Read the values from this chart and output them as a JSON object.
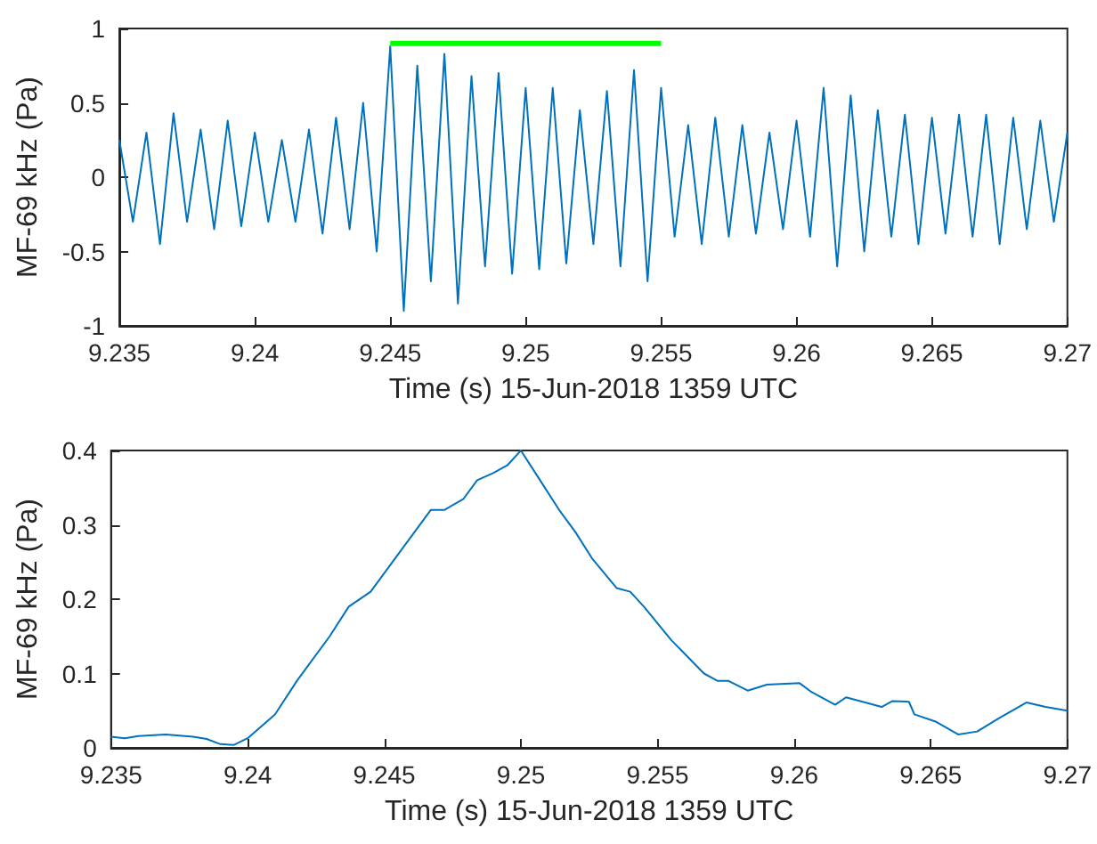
{
  "chart_data": [
    {
      "type": "line",
      "xlabel": "Time (s) 15-Jun-2018 1359 UTC",
      "ylabel": "MF-69 kHz (Pa)",
      "xlim": [
        9.235,
        9.27
      ],
      "ylim": [
        -1,
        1
      ],
      "xticks": [
        9.235,
        9.24,
        9.245,
        9.25,
        9.255,
        9.26,
        9.265,
        9.27
      ],
      "yticks": [
        -1,
        -0.5,
        0,
        0.5,
        1
      ],
      "grid": false,
      "marker": "none",
      "line_style": "solid",
      "series": [
        {
          "color": "#0072bd",
          "x": [
            9.235,
            9.2355,
            9.236,
            9.2365,
            9.237,
            9.2375,
            9.238,
            9.2385,
            9.239,
            9.2395,
            9.24,
            9.2405,
            9.241,
            9.2415,
            9.242,
            9.2425,
            9.243,
            9.2435,
            9.244,
            9.2445,
            9.245,
            9.2455,
            9.246,
            9.2465,
            9.247,
            9.2475,
            9.248,
            9.2485,
            9.249,
            9.2495,
            9.25,
            9.2505,
            9.251,
            9.2515,
            9.252,
            9.2525,
            9.253,
            9.2535,
            9.254,
            9.2545,
            9.255,
            9.2555,
            9.256,
            9.2565,
            9.257,
            9.2575,
            9.258,
            9.2585,
            9.259,
            9.2595,
            9.26,
            9.2605,
            9.261,
            9.2615,
            9.262,
            9.2625,
            9.263,
            9.2635,
            9.264,
            9.2645,
            9.265,
            9.2655,
            9.266,
            9.2665,
            9.267,
            9.2675,
            9.268,
            9.2685,
            9.269,
            9.2695,
            9.27
          ],
          "values": [
            0.25,
            -0.3,
            0.3,
            -0.45,
            0.43,
            -0.3,
            0.32,
            -0.35,
            0.38,
            -0.33,
            0.3,
            -0.3,
            0.25,
            -0.3,
            0.32,
            -0.38,
            0.4,
            -0.35,
            0.5,
            -0.5,
            0.88,
            -0.9,
            0.75,
            -0.7,
            0.83,
            -0.85,
            0.68,
            -0.6,
            0.7,
            -0.65,
            0.6,
            -0.62,
            0.6,
            -0.58,
            0.45,
            -0.45,
            0.58,
            -0.6,
            0.72,
            -0.7,
            0.6,
            -0.4,
            0.35,
            -0.45,
            0.4,
            -0.4,
            0.35,
            -0.38,
            0.3,
            -0.35,
            0.38,
            -0.4,
            0.6,
            -0.6,
            0.55,
            -0.5,
            0.45,
            -0.4,
            0.42,
            -0.45,
            0.4,
            -0.38,
            0.42,
            -0.4,
            0.42,
            -0.45,
            0.4,
            -0.35,
            0.38,
            -0.3,
            0.3
          ]
        },
        {
          "color": "#00ff00",
          "x": [
            9.245,
            9.255
          ],
          "values": [
            0.9,
            0.9
          ]
        }
      ]
    },
    {
      "type": "line",
      "xlabel": "Time (s) 15-Jun-2018 1359 UTC",
      "ylabel": "MF-69 kHz (Pa)",
      "xlim": [
        9.235,
        9.27
      ],
      "ylim": [
        0,
        0.4
      ],
      "xticks": [
        9.235,
        9.24,
        9.245,
        9.25,
        9.255,
        9.26,
        9.265,
        9.27
      ],
      "yticks": [
        0,
        0.1,
        0.2,
        0.3,
        0.4
      ],
      "grid": false,
      "marker": "none",
      "line_style": "solid",
      "series": [
        {
          "color": "#0072bd",
          "x": [
            9.235,
            9.2355,
            9.236,
            9.237,
            9.238,
            9.2385,
            9.239,
            9.2395,
            9.24,
            9.241,
            9.2418,
            9.2422,
            9.243,
            9.2437,
            9.2445,
            9.2455,
            9.2467,
            9.2472,
            9.2479,
            9.2484,
            9.249,
            9.2495,
            9.25,
            9.2507,
            9.2514,
            9.252,
            9.2526,
            9.2535,
            9.254,
            9.2545,
            9.2555,
            9.2567,
            9.2572,
            9.2576,
            9.2583,
            9.259,
            9.2602,
            9.2606,
            9.2615,
            9.2619,
            9.2632,
            9.2636,
            9.2642,
            9.2644,
            9.2652,
            9.266,
            9.2667,
            9.2675,
            9.2685,
            9.2692,
            9.27
          ],
          "values": [
            0.015,
            0.013,
            0.016,
            0.018,
            0.015,
            0.012,
            0.005,
            0.004,
            0.013,
            0.045,
            0.09,
            0.11,
            0.15,
            0.19,
            0.21,
            0.26,
            0.32,
            0.32,
            0.335,
            0.36,
            0.37,
            0.38,
            0.4,
            0.36,
            0.32,
            0.29,
            0.255,
            0.215,
            0.21,
            0.19,
            0.145,
            0.1,
            0.09,
            0.09,
            0.077,
            0.085,
            0.087,
            0.076,
            0.058,
            0.068,
            0.055,
            0.063,
            0.062,
            0.045,
            0.035,
            0.018,
            0.022,
            0.04,
            0.061,
            0.055,
            0.05
          ]
        }
      ]
    }
  ]
}
